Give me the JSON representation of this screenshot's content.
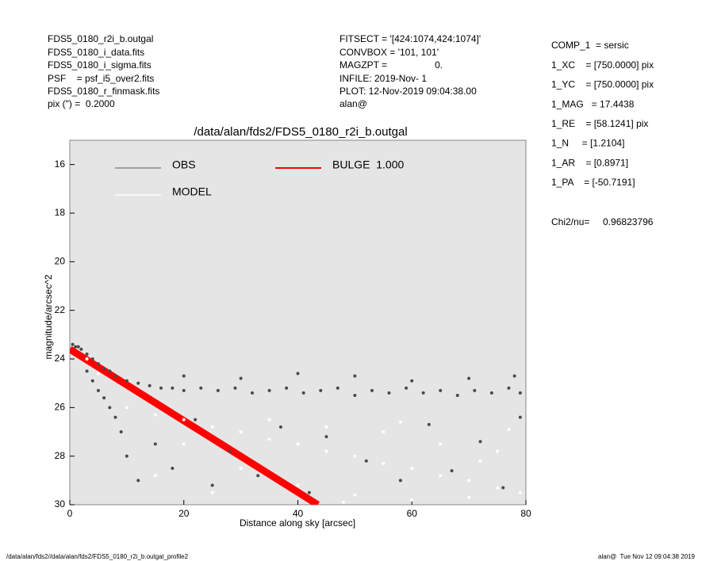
{
  "header": {
    "left": [
      "FDS5_0180_r2i_b.outgal",
      "FDS5_0180_i_data.fits",
      "FDS5_0180_i_sigma.fits",
      "PSF    = psf_i5_over2.fits",
      "FDS5_0180_r_finmask.fits",
      "pix (\") =  0.2000"
    ],
    "middle": [
      "FITSECT = '[424:1074,424:1074]'",
      "CONVBOX = '101, 101'",
      "MAGZPT =                  0.",
      "INFILE: 2019-Nov- 1",
      "PLOT: 12-Nov-2019 09:04:38.00",
      "alan@"
    ],
    "right": [
      "COMP_1  = sersic",
      "1_XC    = [750.0000] pix",
      "1_YC    = [750.0000] pix",
      "1_MAG   = 17.4438",
      "1_RE    = [58.1241] pix",
      "1_N     = [1.2104]",
      "1_AR    = [0.8971]",
      "1_PA    = [-50.7191]"
    ],
    "chi": "Chi2/nu=     0.96823796"
  },
  "footer": {
    "left": "/data/alan/fds2//data/alan/fds2/FDS5_0180_r2i_b.outgal_profile2",
    "right": "alan@  Tue Nov 12 09:04:38 2019"
  },
  "chart_data": {
    "type": "scatter",
    "title": "/data/alan/fds2/FDS5_0180_r2i_b.outgal",
    "x_label": "Distance along sky [arcsec]",
    "y_label": "magnitude/arcsec^2",
    "xlim": [
      0,
      80
    ],
    "ylim": [
      30,
      15
    ],
    "xticks": [
      0,
      20,
      40,
      60,
      80
    ],
    "yticks": [
      16,
      18,
      20,
      22,
      24,
      26,
      28,
      30
    ],
    "series": [
      {
        "name": "OBS",
        "color": "#4a4a4a",
        "legend_color": "#888888",
        "mode": "points",
        "x": [
          0.5,
          1,
          1.5,
          2,
          3,
          4,
          5,
          6,
          7,
          8,
          10,
          12,
          14,
          16,
          18,
          20,
          23,
          26,
          29,
          32,
          35,
          38,
          41,
          44,
          47,
          50,
          53,
          56,
          59,
          62,
          65,
          68,
          71,
          74,
          77,
          79,
          20,
          30,
          40,
          50,
          60,
          70,
          78,
          3,
          5,
          7,
          9,
          10,
          12,
          15,
          18,
          22,
          25,
          28,
          33,
          37,
          42,
          45,
          52,
          58,
          63,
          67,
          72,
          76,
          79,
          4,
          6,
          8
        ],
        "values": [
          23.4,
          23.5,
          23.5,
          23.6,
          23.8,
          24.0,
          24.2,
          24.4,
          24.5,
          24.7,
          24.9,
          25.0,
          25.1,
          25.2,
          25.2,
          25.3,
          25.2,
          25.3,
          25.2,
          25.4,
          25.3,
          25.2,
          25.4,
          25.3,
          25.2,
          25.5,
          25.3,
          25.4,
          25.2,
          25.4,
          25.3,
          25.5,
          25.3,
          25.4,
          25.2,
          25.4,
          24.7,
          24.8,
          24.6,
          24.7,
          24.9,
          24.8,
          24.7,
          24.5,
          25.3,
          26.0,
          27.0,
          28.0,
          29.0,
          27.5,
          28.5,
          26.5,
          29.2,
          27.8,
          28.8,
          26.8,
          29.5,
          27.2,
          28.2,
          29.0,
          26.7,
          28.6,
          27.4,
          29.3,
          26.4,
          24.9,
          25.6,
          26.4
        ]
      },
      {
        "name": "MODEL",
        "color": "#ffffff",
        "legend_color": "#ffffff",
        "mode": "points",
        "x": [
          3,
          5,
          10,
          15,
          20,
          25,
          30,
          35,
          40,
          45,
          50,
          55,
          60,
          65,
          70,
          75,
          79,
          20,
          30,
          40,
          50,
          60,
          70,
          35,
          45,
          55,
          65,
          75,
          25,
          15,
          48,
          72,
          58,
          77
        ],
        "values": [
          24.0,
          24.6,
          26.0,
          26.3,
          26.5,
          26.8,
          27.0,
          27.3,
          27.5,
          27.8,
          28.0,
          28.3,
          28.5,
          28.8,
          29.0,
          29.3,
          29.5,
          27.5,
          28.5,
          29.2,
          29.6,
          29.8,
          29.7,
          26.5,
          26.8,
          27.0,
          27.5,
          27.8,
          29.5,
          28.8,
          29.9,
          28.2,
          26.6,
          26.9
        ]
      },
      {
        "name": "BULGE  1.000",
        "color": "#ff0000",
        "legend_color": "#ff0000",
        "mode": "line",
        "x": [
          0,
          10,
          20,
          30,
          40,
          43.5
        ],
        "values": [
          23.6,
          25.07,
          26.54,
          28.01,
          29.48,
          30.0
        ]
      }
    ]
  }
}
